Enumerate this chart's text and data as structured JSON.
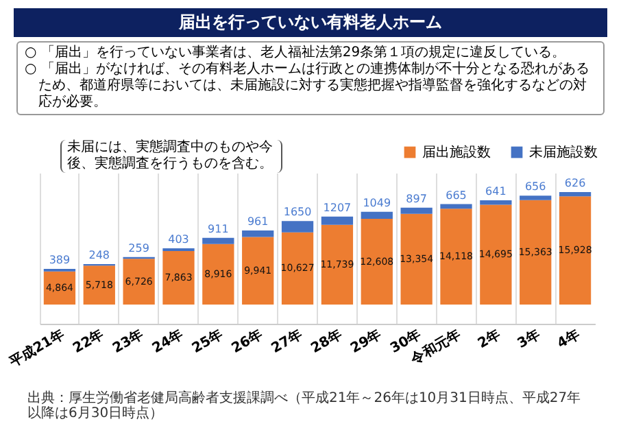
{
  "chart_data": {
    "type": "bar",
    "title": "届出を行っていない有料老人ホーム",
    "annotations": [
      "○ 「届出」を行っていない事業者は、老人福祉法第29条第１項の規定に違反している。",
      "○ 「届出」がなければ、その有料老人ホームは行政との連携体制が不十分となる恐れがあるため、都道府県等においては、未届施設に対する実態把握や指導監督を強化するなどの対応が必要。",
      "未届には、実態調査中のものや今後、実態調査を行うものを含む。",
      "出典：厚生労働省老健局高齢者支援課調べ（平成21年～26年は10月31日時点、平成27年以降は6月30日時点）"
    ],
    "categories": [
      "平成21年",
      "22年",
      "23年",
      "24年",
      "25年",
      "26年",
      "27年",
      "28年",
      "29年",
      "30年",
      "令和元年",
      "2年",
      "3年",
      "4年"
    ],
    "stacked": true,
    "legend": "top right",
    "grid": "x",
    "tick_labels": "x",
    "series": [
      {
        "name": "届出施設数",
        "color": "#ed7d31",
        "values": [
          4864,
          5718,
          6726,
          7863,
          8916,
          9941,
          10627,
          11739,
          12608,
          13354,
          14118,
          14695,
          15363,
          15928
        ],
        "value_labels": [
          "4,864",
          "5,718",
          "6,726",
          "7,863",
          "8,916",
          "9,941",
          "10,627",
          "11,739",
          "12,608",
          "13,354",
          "14,118",
          "14,695",
          "15,363",
          "15,928"
        ]
      },
      {
        "name": "未届施設数",
        "color": "#4472c4",
        "values": [
          389,
          248,
          259,
          403,
          911,
          961,
          1650,
          1207,
          1049,
          897,
          665,
          641,
          656,
          626
        ],
        "value_labels": [
          "389",
          "248",
          "259",
          "403",
          "911",
          "961",
          "1650",
          "1207",
          "1049",
          "897",
          "665",
          "641",
          "656",
          "626"
        ]
      }
    ]
  }
}
